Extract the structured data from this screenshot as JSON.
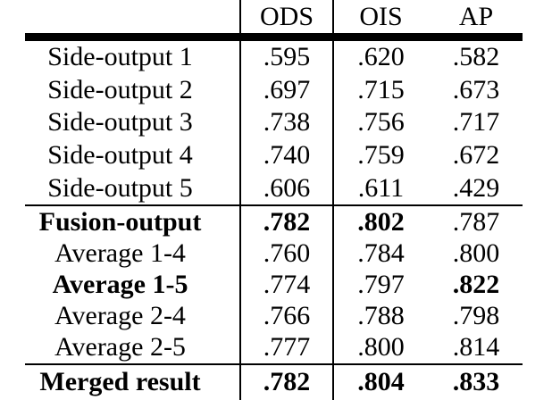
{
  "table": {
    "title": "edge-detection-results-table",
    "columns": [
      "",
      "ODS",
      "OIS",
      "AP"
    ],
    "rows": [
      {
        "label": "Side-output 1",
        "ods": ".595",
        "ois": ".620",
        "ap": ".582",
        "bold": []
      },
      {
        "label": "Side-output 2",
        "ods": ".697",
        "ois": ".715",
        "ap": ".673",
        "bold": []
      },
      {
        "label": "Side-output 3",
        "ods": ".738",
        "ois": ".756",
        "ap": ".717",
        "bold": []
      },
      {
        "label": "Side-output 4",
        "ods": ".740",
        "ois": ".759",
        "ap": ".672",
        "bold": []
      },
      {
        "label": "Side-output 5",
        "ods": ".606",
        "ois": ".611",
        "ap": ".429",
        "bold": []
      },
      {
        "label": "Fusion-output",
        "ods": ".782",
        "ois": ".802",
        "ap": ".787",
        "bold": [
          "label",
          "ods",
          "ois"
        ]
      },
      {
        "label": "Average 1-4",
        "ods": ".760",
        "ois": ".784",
        "ap": ".800",
        "bold": []
      },
      {
        "label": "Average 1-5",
        "ods": ".774",
        "ois": ".797",
        "ap": ".822",
        "bold": [
          "label",
          "ap"
        ]
      },
      {
        "label": "Average 2-4",
        "ods": ".766",
        "ois": ".788",
        "ap": ".798",
        "bold": []
      },
      {
        "label": "Average 2-5",
        "ods": ".777",
        "ois": ".800",
        "ap": ".814",
        "bold": []
      },
      {
        "label": "Merged result",
        "ods": ".782",
        "ois": ".804",
        "ap": ".833",
        "bold": [
          "label",
          "ods",
          "ois",
          "ap"
        ]
      }
    ],
    "colors": {
      "text": "#000000",
      "background": "#ffffff",
      "rule": "#000000"
    }
  }
}
